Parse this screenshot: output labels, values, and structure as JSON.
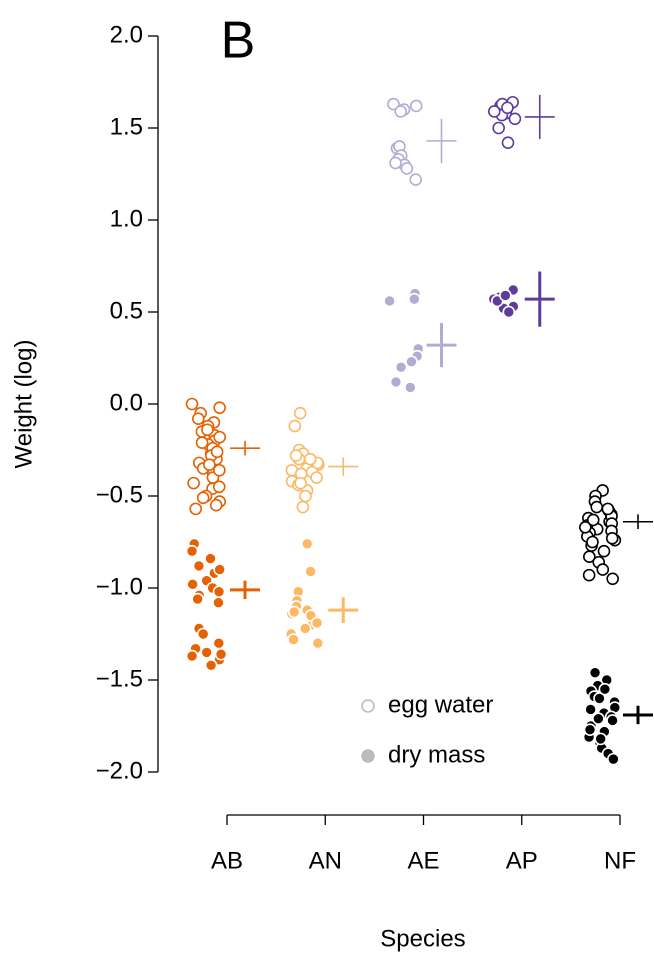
{
  "chart_data": {
    "type": "strip",
    "panel_label": "B",
    "x_label": "Species",
    "y_label": "Weight (log)",
    "categories": [
      "AB",
      "AN",
      "AE",
      "AP",
      "NF"
    ],
    "colors": [
      "#e66101",
      "#fdb863",
      "#b2abd2",
      "#5e3c99",
      "#000000"
    ],
    "ylim": [
      -2.0,
      2.0
    ],
    "yticks": [
      {
        "value": -2.0,
        "label": "−2.0"
      },
      {
        "value": -1.5,
        "label": "−1.5"
      },
      {
        "value": -1.0,
        "label": "−1.0"
      },
      {
        "value": -0.5,
        "label": "−0.5"
      },
      {
        "value": 0.0,
        "label": "0.0"
      },
      0.5,
      {
        "value": 1.0,
        "label": "1.0"
      },
      {
        "value": 1.5,
        "label": "1.5"
      },
      {
        "value": 2.0,
        "label": "2.0"
      }
    ],
    "legend": "bottom-right",
    "series": [
      {
        "name": "egg water",
        "marker": "open",
        "values": [
          [
            0.0,
            -0.02,
            -0.05,
            -0.08,
            -0.1,
            -0.12,
            -0.15,
            -0.17,
            -0.2,
            -0.22,
            -0.25,
            -0.27,
            -0.3,
            -0.32,
            -0.35,
            -0.38,
            -0.4,
            -0.43,
            -0.46,
            -0.5,
            -0.53,
            -0.55,
            -0.57,
            -0.14,
            -0.18,
            -0.24,
            -0.28,
            -0.33,
            -0.36,
            -0.45,
            -0.51,
            -0.21,
            -0.26
          ],
          [
            -0.05,
            -0.12,
            -0.25,
            -0.27,
            -0.3,
            -0.33,
            -0.35,
            -0.37,
            -0.4,
            -0.42,
            -0.44,
            -0.47,
            -0.5,
            -0.56,
            -0.28,
            -0.32,
            -0.36,
            -0.38,
            -0.43,
            -0.3
          ],
          [
            1.62,
            1.6,
            1.63,
            1.59,
            1.39,
            1.4,
            1.35,
            1.33,
            1.3,
            1.28,
            1.31,
            1.22
          ],
          [
            1.62,
            1.64,
            1.6,
            1.58,
            1.63,
            1.57,
            1.61,
            1.55,
            1.5,
            1.42,
            1.59
          ],
          [
            -0.47,
            -0.5,
            -0.53,
            -0.56,
            -0.58,
            -0.6,
            -0.62,
            -0.64,
            -0.66,
            -0.68,
            -0.7,
            -0.72,
            -0.74,
            -0.77,
            -0.8,
            -0.83,
            -0.86,
            -0.9,
            -0.93,
            -0.95,
            -0.61,
            -0.65,
            -0.69,
            -0.73,
            -0.57,
            -0.63,
            -0.67,
            -0.75
          ]
        ],
        "means": [
          -0.24,
          -0.34,
          1.43,
          1.56,
          -0.64
        ],
        "errors": [
          0.04,
          0.05,
          0.12,
          0.12,
          0.04
        ]
      },
      {
        "name": "dry mass",
        "marker": "filled",
        "values": [
          [
            -0.76,
            -0.8,
            -0.84,
            -0.88,
            -0.92,
            -0.96,
            -1.0,
            -1.04,
            -1.08,
            -1.22,
            -1.25,
            -1.3,
            -1.33,
            -1.35,
            -1.37,
            -1.39,
            -1.42,
            -0.9,
            -0.98,
            -1.02,
            -1.06,
            -1.36
          ],
          [
            -0.76,
            -0.91,
            -1.02,
            -1.07,
            -1.1,
            -1.12,
            -1.14,
            -1.16,
            -1.18,
            -1.2,
            -1.22,
            -1.25,
            -1.28,
            -1.3,
            -1.13,
            -1.15,
            -1.19
          ],
          [
            0.56,
            0.6,
            0.57,
            0.3,
            0.26,
            0.23,
            0.2,
            0.12,
            0.09
          ],
          [
            0.62,
            0.58,
            0.57,
            0.55,
            0.53,
            0.52,
            0.56,
            0.59,
            0.5
          ],
          [
            -1.46,
            -1.5,
            -1.53,
            -1.56,
            -1.59,
            -1.62,
            -1.65,
            -1.68,
            -1.7,
            -1.72,
            -1.75,
            -1.78,
            -1.81,
            -1.84,
            -1.87,
            -1.9,
            -1.93,
            -1.6,
            -1.66,
            -1.71,
            -1.77,
            -1.55,
            -1.82
          ]
        ],
        "means": [
          -1.01,
          -1.12,
          0.32,
          0.57,
          -1.69
        ],
        "errors": [
          0.05,
          0.07,
          0.12,
          0.15,
          0.05
        ]
      }
    ]
  }
}
